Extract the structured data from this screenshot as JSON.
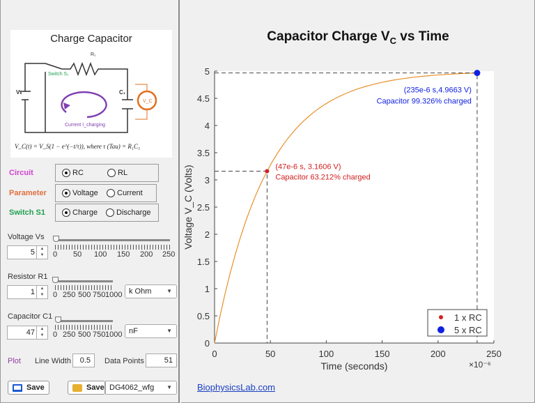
{
  "left": {
    "diagram": {
      "title": "Charge Capacitor",
      "r_label": "R₁",
      "switch_label": "Switch S₁",
      "vs_label": "Vₛ",
      "c_label": "C₁",
      "vc_label": "V_C",
      "current_label": "Current I_charging",
      "formula": "V_C(t) = V_S(1 − e^(−t/τ)), where τ (Tau) = R₁C₁"
    },
    "circuit": {
      "label": "Circuit",
      "label_color": "#d040d0",
      "options": [
        "RC",
        "RL"
      ],
      "selected": "RC"
    },
    "parameter": {
      "label": "Parameter",
      "label_color": "#e07040",
      "options": [
        "Voltage",
        "Current"
      ],
      "selected": "Voltage"
    },
    "switch": {
      "label": "Switch S1",
      "label_color": "#20a050",
      "options": [
        "Charge",
        "Discharge"
      ],
      "selected": "Charge"
    },
    "voltage": {
      "label": "Voltage Vs",
      "value": "5",
      "ticks": [
        "0",
        "50",
        "100",
        "150",
        "200",
        "250"
      ],
      "slider_value": 5,
      "slider_max": 250
    },
    "resistor": {
      "label": "Resistor R1",
      "value": "1",
      "ticks": [
        "0",
        "250",
        "500",
        "750",
        "1000"
      ],
      "unit": "k Ohm",
      "slider_value": 1,
      "slider_max": 1000
    },
    "capacitor": {
      "label": "Capacitor C1",
      "value": "47",
      "ticks": [
        "0",
        "250",
        "500",
        "750",
        "1000"
      ],
      "unit": "nF",
      "slider_value": 47,
      "slider_max": 1000
    },
    "plot": {
      "label": "Plot",
      "label_color": "#9040a0",
      "line_width_label": "Line Width",
      "line_width": "0.5",
      "data_points_label": "Data Points",
      "data_points": "51"
    },
    "save_screen_label": "Save",
    "save_file_label": "Save",
    "device": "DG4062_wfg"
  },
  "footer_link": "BiophysicsLab.com",
  "chart_data": {
    "type": "line",
    "title": "Capacitor Charge V_C vs Time",
    "title_main": "Capacitor  Charge  V",
    "title_sub": "C",
    "title_end": "  vs  Time",
    "xlabel": "Time (seconds)",
    "xscale_label": "×10⁻⁶",
    "ylabel": "Voltage  V_C (Volts)",
    "xlim": [
      0,
      250
    ],
    "ylim": [
      0,
      5
    ],
    "xticks": [
      "0",
      "50",
      "100",
      "150",
      "200",
      "250"
    ],
    "yticks": [
      "0",
      "0.5",
      "1",
      "1.5",
      "2",
      "2.5",
      "3",
      "3.5",
      "4",
      "4.5",
      "5"
    ],
    "series": [
      {
        "vs": 5,
        "tau": 47,
        "t_max": 235,
        "points": 51,
        "color": "#e8902a"
      }
    ],
    "markers": [
      {
        "name": "1 x RC",
        "x": 47,
        "y": 3.1606,
        "color": "#d42020",
        "label1": "(47e-6 s, 3.1606 V)",
        "label2": "Capacitor 63.212% charged"
      },
      {
        "name": "5 x RC",
        "x": 235,
        "y": 4.9663,
        "color": "#1020e0",
        "label1": "(235e-6 s,4.9663 V)",
        "label2": "Capacitor 99.326% charged"
      }
    ],
    "legend": "bottom-right",
    "grid": false
  }
}
